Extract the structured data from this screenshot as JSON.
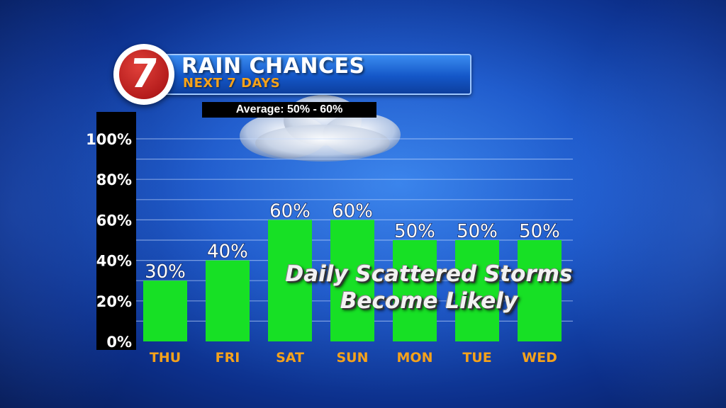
{
  "header": {
    "logo_text": "7",
    "title": "RAIN CHANCES",
    "subtitle": "NEXT 7 DAYS",
    "average_note": "Average: 50% - 60%"
  },
  "annotation": {
    "line1": "Daily Scattered Storms",
    "line2": "Become Likely"
  },
  "colors": {
    "bar": "#17e025",
    "day_label": "#f5a21b",
    "logo_red": "#c1201f"
  },
  "chart_data": {
    "type": "bar",
    "title": "RAIN CHANCES",
    "subtitle": "NEXT 7 DAYS",
    "categories": [
      "THU",
      "FRI",
      "SAT",
      "SUN",
      "MON",
      "TUE",
      "WED"
    ],
    "values": [
      30,
      40,
      60,
      60,
      50,
      50,
      50
    ],
    "value_labels": [
      "30%",
      "40%",
      "60%",
      "60%",
      "50%",
      "50%",
      "50%"
    ],
    "y_ticks": [
      "0%",
      "20%",
      "40%",
      "60%",
      "80%",
      "100%"
    ],
    "ylim": [
      0,
      100
    ],
    "grid": true
  }
}
